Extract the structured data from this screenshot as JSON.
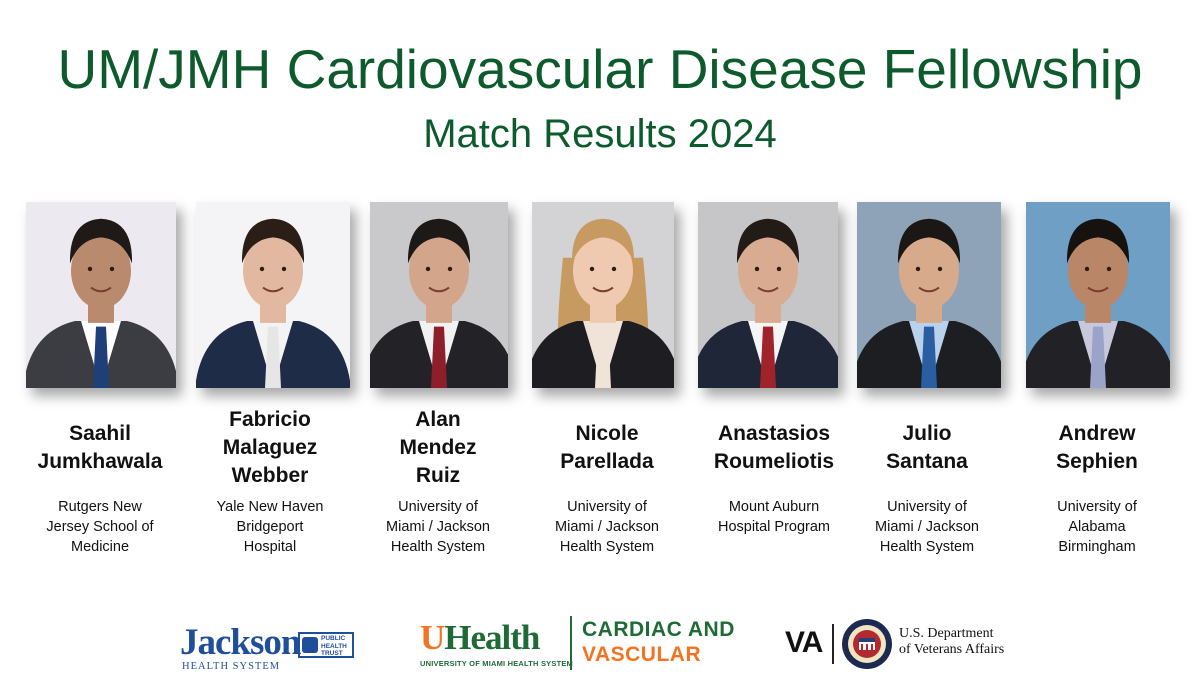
{
  "header": {
    "title": "UM/JMH Cardiovascular Disease Fellowship",
    "subtitle": "Match Results 2024"
  },
  "fellows": [
    {
      "name_lines": [
        "Saahil",
        "Jumkhawala"
      ],
      "program_lines": [
        "Rutgers New",
        "Jersey School of",
        "Medicine"
      ],
      "photo": {
        "background": "#eceaf0",
        "suit": "#3b3d42",
        "shirt": "#ffffff",
        "tie": "#1e3f7a",
        "skin": "#b98a6d",
        "hair": "#1f1a17"
      }
    },
    {
      "name_lines": [
        "Fabricio",
        "Malaguez",
        "Webber"
      ],
      "program_lines": [
        "Yale New Haven",
        "Bridgeport",
        "Hospital"
      ],
      "photo": {
        "background": "#f4f4f6",
        "suit": "#1f2c48",
        "shirt": "#f3f3f3",
        "tie": "#e6e6e6",
        "skin": "#e2b9a0",
        "hair": "#2a1e17"
      }
    },
    {
      "name_lines": [
        "Alan",
        "Mendez",
        "Ruiz"
      ],
      "program_lines": [
        "University of",
        "Miami / Jackson",
        "Health System"
      ],
      "photo": {
        "background": "#c9c9cb",
        "suit": "#232327",
        "shirt": "#f2f2f2",
        "tie": "#8e1f2a",
        "skin": "#d3a58a",
        "hair": "#1d1916"
      }
    },
    {
      "name_lines": [
        "Nicole",
        "Parellada"
      ],
      "program_lines": [
        "University of",
        "Miami / Jackson",
        "Health System"
      ],
      "photo": {
        "background": "#d3d3d5",
        "suit": "#1e1e22",
        "shirt": "#f0e4d8",
        "tie": "#f0e4d8",
        "skin": "#efc9b0",
        "hair": "#c79a62"
      }
    },
    {
      "name_lines": [
        "Anastasios",
        "Roumeliotis"
      ],
      "program_lines": [
        "Mount Auburn",
        "Hospital Program"
      ],
      "photo": {
        "background": "#c6c6c8",
        "suit": "#1f2638",
        "shirt": "#f5f5f5",
        "tie": "#a0232b",
        "skin": "#d9ab90",
        "hair": "#231b17"
      }
    },
    {
      "name_lines": [
        "Julio",
        "Santana"
      ],
      "program_lines": [
        "University of",
        "Miami / Jackson",
        "Health System"
      ],
      "photo": {
        "background": "#8ea2b8",
        "suit": "#1c1e22",
        "shirt": "#b9d1ea",
        "tie": "#2a5ea0",
        "skin": "#d8aa8c",
        "hair": "#1b1714"
      }
    },
    {
      "name_lines": [
        "Andrew",
        "Sephien"
      ],
      "program_lines": [
        "University of",
        "Alabama",
        "Birmingham"
      ],
      "photo": {
        "background": "#6f9fc4",
        "suit": "#222226",
        "shirt": "#c7c8dc",
        "tie": "#9aa3c8",
        "skin": "#b98667",
        "hair": "#15120f"
      }
    }
  ],
  "logos": {
    "jackson": {
      "name": "Jackson",
      "subtitle": "HEALTH SYSTEM",
      "badge_lines": [
        "PUBLIC",
        "HEALTH",
        "TRUST"
      ],
      "color": "#1f4f9a"
    },
    "uhealth": {
      "u_letter": "U",
      "word": "Health",
      "subtitle": "UNIVERSITY OF MIAMI HEALTH SYSTEM",
      "division_line1": "CARDIAC AND",
      "division_line2": "VASCULAR",
      "green": "#1f6b36",
      "orange": "#f47321"
    },
    "va": {
      "mark": "VA",
      "text_lines": [
        "U.S. Department",
        "of Veterans Affairs"
      ]
    }
  }
}
